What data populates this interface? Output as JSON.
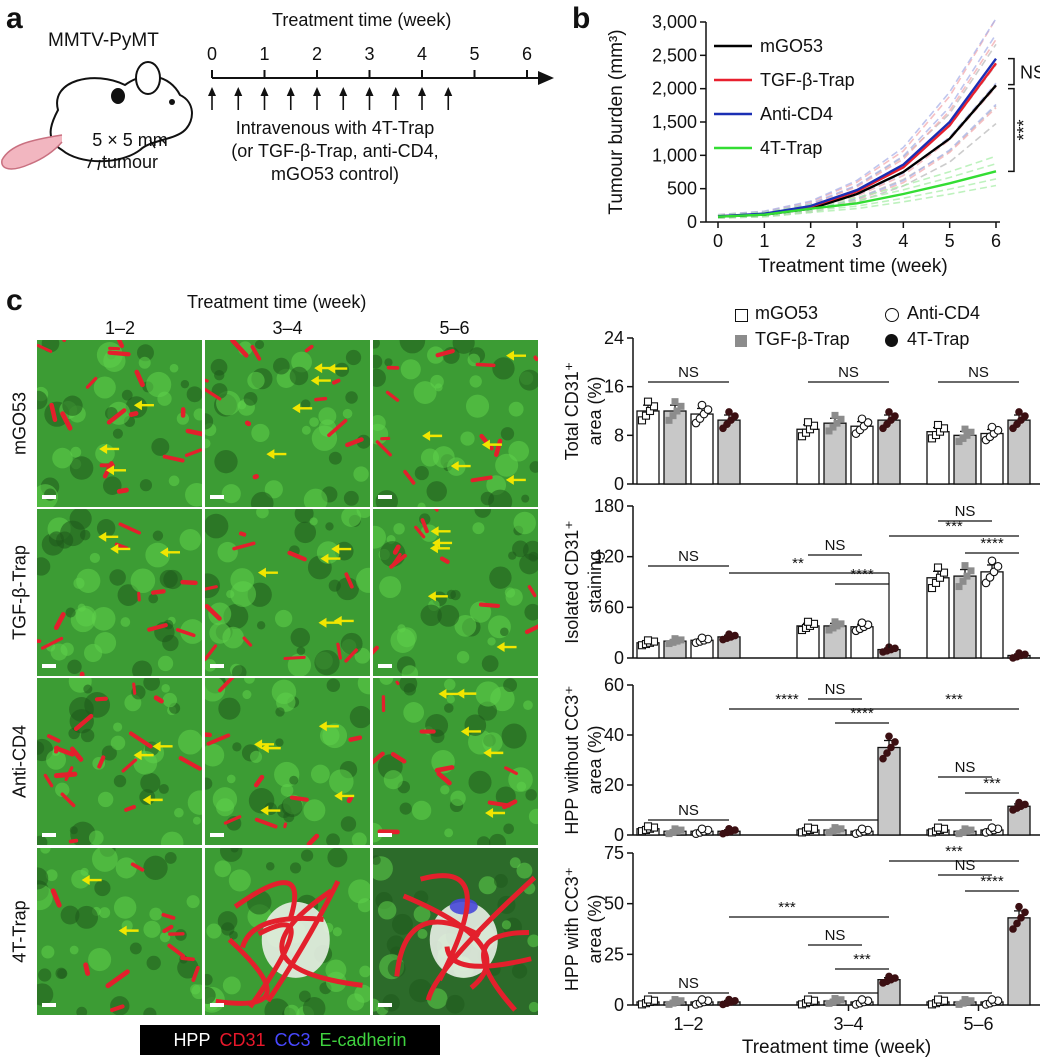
{
  "panel_a": {
    "letter": "a",
    "mouse_model": "MMTV-PyMT",
    "tumour_label_1": "5 × 5 mm",
    "tumour_label_2": "tumour",
    "timeline_title": "Treatment time (week)",
    "timeline_ticks": [
      "0",
      "1",
      "2",
      "3",
      "4",
      "5",
      "6"
    ],
    "injection_text": [
      "Intravenous with 4T-Trap",
      "(or TGF-β-Trap, anti-CD4,",
      "mGO53 control)"
    ],
    "injection_count": 10
  },
  "panel_b": {
    "letter": "b",
    "annotations": {
      "ns": "NS",
      "sig": "***"
    }
  },
  "panel_c": {
    "letter": "c",
    "image_title": "Treatment time (week)",
    "columns": [
      "1–2",
      "3–4",
      "5–6"
    ],
    "rows": [
      "mGO53",
      "TGF-β-Trap",
      "Anti-CD4",
      "4T-Trap"
    ],
    "stain_legend": [
      {
        "label": "HPP",
        "color": "#ffffff"
      },
      {
        "label": "CD31",
        "color": "#e8182b"
      },
      {
        "label": "CC3",
        "color": "#3a3aff"
      },
      {
        "label": "E-cadherin",
        "color": "#3fd23f"
      }
    ],
    "legend": [
      {
        "label": "mGO53",
        "marker": "open-square"
      },
      {
        "label": "Anti-CD4",
        "marker": "open-circle"
      },
      {
        "label": "TGF-β-Trap",
        "marker": "grey-square"
      },
      {
        "label": "4T-Trap",
        "marker": "filled-circle"
      }
    ],
    "xlabel": "Treatment time (week)",
    "sig_labels": {
      "ns": "NS",
      "s2": "**",
      "s3": "***",
      "s4": "****"
    }
  },
  "chart_data": [
    {
      "type": "line",
      "xlabel": "Treatment time (week)",
      "ylabel": "Tumour burden (mm³)",
      "x": [
        0,
        1,
        2,
        3,
        4,
        5,
        6
      ],
      "xlim": [
        0,
        6
      ],
      "ylim": [
        0,
        3000
      ],
      "yticks": [
        "0",
        "500",
        "1,000",
        "1,500",
        "2,000",
        "2,500",
        "3,000"
      ],
      "legend_position": "top-left",
      "series": [
        {
          "name": "mGO53",
          "color": "#000000",
          "values": [
            80,
            110,
            200,
            420,
            750,
            1250,
            2050
          ]
        },
        {
          "name": "TGF-β-Trap",
          "color": "#e8202e",
          "values": [
            85,
            120,
            230,
            460,
            820,
            1450,
            2380
          ]
        },
        {
          "name": "Anti-CD4",
          "color": "#1b2fb4",
          "values": [
            85,
            125,
            240,
            480,
            860,
            1500,
            2450
          ]
        },
        {
          "name": "4T-Trap",
          "color": "#33dd33",
          "values": [
            80,
            110,
            200,
            280,
            420,
            580,
            760
          ]
        }
      ]
    },
    {
      "type": "bar",
      "ylabel": [
        "Total CD31⁺",
        "area (%)"
      ],
      "categories": [
        "1–2",
        "3–4",
        "5–6"
      ],
      "ylim": [
        0,
        24
      ],
      "yticks": [
        "0",
        "8",
        "16",
        "24"
      ],
      "series": [
        {
          "name": "mGO53",
          "values": [
            12,
            9,
            8.6
          ]
        },
        {
          "name": "TGF-β-Trap",
          "values": [
            12,
            10,
            8
          ]
        },
        {
          "name": "Anti-CD4",
          "values": [
            11.5,
            9.5,
            8.3
          ]
        },
        {
          "name": "4T-Trap",
          "values": [
            10.5,
            10.5,
            10.5
          ]
        }
      ]
    },
    {
      "type": "bar",
      "ylabel": [
        "Isolated CD31⁺",
        "staining"
      ],
      "categories": [
        "1–2",
        "3–4",
        "5–6"
      ],
      "ylim": [
        0,
        180
      ],
      "yticks": [
        "0",
        "60",
        "120",
        "180"
      ],
      "series": [
        {
          "name": "mGO53",
          "values": [
            18,
            38,
            95
          ]
        },
        {
          "name": "TGF-β-Trap",
          "values": [
            20,
            38,
            97
          ]
        },
        {
          "name": "Anti-CD4",
          "values": [
            21,
            37,
            102
          ]
        },
        {
          "name": "4T-Trap",
          "values": [
            25,
            10,
            3
          ]
        }
      ]
    },
    {
      "type": "bar",
      "ylabel": [
        "HPP without CC3⁺",
        "area (%)"
      ],
      "categories": [
        "1–2",
        "3–4",
        "5–6"
      ],
      "ylim": [
        0,
        60
      ],
      "yticks": [
        "0",
        "20",
        "40",
        "60"
      ],
      "series": [
        {
          "name": "mGO53",
          "values": [
            2.5,
            2,
            2
          ]
        },
        {
          "name": "TGF-β-Trap",
          "values": [
            1.5,
            2,
            1.5
          ]
        },
        {
          "name": "Anti-CD4",
          "values": [
            1.5,
            1.5,
            2
          ]
        },
        {
          "name": "4T-Trap",
          "values": [
            1.5,
            35,
            11.5
          ]
        }
      ]
    },
    {
      "type": "bar",
      "ylabel": [
        "HPP with CC3⁺",
        "area (%)"
      ],
      "categories": [
        "1–2",
        "3–4",
        "5–6"
      ],
      "ylim": [
        0,
        75
      ],
      "yticks": [
        "0",
        "25",
        "50",
        "75"
      ],
      "series": [
        {
          "name": "mGO53",
          "values": [
            1.5,
            1.5,
            1.5
          ]
        },
        {
          "name": "TGF-β-Trap",
          "values": [
            1.5,
            2,
            1.5
          ]
        },
        {
          "name": "Anti-CD4",
          "values": [
            1.5,
            1.5,
            1.5
          ]
        },
        {
          "name": "4T-Trap",
          "values": [
            1.5,
            12.5,
            43
          ]
        }
      ]
    }
  ]
}
